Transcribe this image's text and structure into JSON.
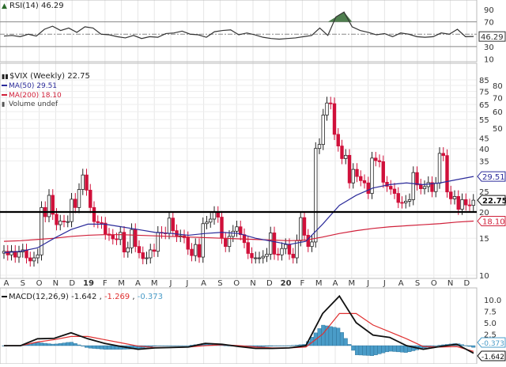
{
  "rsi": {
    "label": "RSI(14) 46.29",
    "last": 46.29,
    "ticks": [
      90,
      70,
      30,
      10
    ],
    "overbought": 70,
    "oversold": 30,
    "midline": 50,
    "fill_color": "#4f7f4f",
    "values": [
      47,
      48,
      46,
      50,
      47,
      58,
      63,
      56,
      60,
      53,
      62,
      60,
      50,
      49,
      46,
      44,
      48,
      43,
      46,
      45,
      51,
      52,
      55,
      50,
      49,
      45,
      54,
      56,
      57,
      49,
      52,
      49,
      45,
      43,
      42,
      43,
      44,
      46,
      48,
      60,
      48,
      78,
      86,
      62,
      56,
      53,
      49,
      51,
      46,
      52,
      50,
      46,
      45,
      46,
      52,
      50,
      58,
      46,
      46.29
    ]
  },
  "price": {
    "label": "$VIX (Weekly) 22.75",
    "ma50_label": "MA(50) 29.51",
    "ma200_label": "MA(200) 18.10",
    "volume_label": "Volume undef",
    "last": "22.75",
    "ma50_last": "29.51",
    "ma200_last": "18.10",
    "ticks": [
      85,
      80,
      75,
      70,
      65,
      60,
      55,
      50,
      45,
      40,
      35,
      25,
      20,
      15,
      10
    ],
    "support_line": 20,
    "up_color": "#ffffff",
    "down_color": "#d0103a",
    "ma50_color": "#2b2b9a",
    "ma200_color": "#d0203a",
    "weekly_close": [
      13,
      12.5,
      13,
      12.2,
      12.9,
      13.2,
      12.1,
      11.7,
      12.1,
      12.5,
      21,
      19,
      24,
      19.5,
      17.4,
      18.1,
      18,
      18,
      23,
      21,
      25.6,
      30,
      25.4,
      21,
      18,
      17.8,
      17.7,
      15.7,
      15.5,
      14.9,
      14.8,
      16,
      12.9,
      13.5,
      16.5,
      13.7,
      12.8,
      12,
      12.1,
      13.2,
      13,
      16,
      15.9,
      15.8,
      18.7,
      16.3,
      15.3,
      15.4,
      15.1,
      13.3,
      12.4,
      14,
      12.2,
      17.6,
      17.9,
      18.5,
      19.9,
      18.9,
      15,
      13.7,
      15.3,
      16.2,
      17,
      15.6,
      14.3,
      12.7,
      12.1,
      12.1,
      12.1,
      12.3,
      12.6,
      15.9,
      12.6,
      12.5,
      13.4,
      14,
      12.6,
      12.1,
      14.6,
      18.8,
      15.5,
      13.7,
      14.4,
      40.1,
      41.9,
      57.8,
      66,
      65.5,
      46.8,
      41.2,
      35.9,
      37.2,
      27.5,
      31.9,
      29.5,
      28.2,
      27.5,
      24.5,
      36.1,
      35.1,
      34.7,
      27.7,
      26.5,
      25.7,
      24.5,
      22.2,
      22.1,
      22.5,
      22.9,
      30.8,
      26.9,
      25.8,
      26.4,
      27.6,
      25,
      27.4,
      38,
      37.1,
      24.9,
      23.1,
      23.7,
      20.6,
      22.9,
      21.6,
      21.5,
      22.75
    ],
    "ma50_monthly": [
      12.8,
      13,
      13.5,
      15,
      16.5,
      17.5,
      17.5,
      17,
      16.5,
      16,
      15.8,
      15.5,
      15.8,
      16,
      15.8,
      15,
      14.5,
      14,
      14.5,
      17.5,
      21.5,
      24,
      26,
      27,
      27.5,
      27,
      27.5,
      28.5,
      29.51
    ],
    "ma200_monthly": [
      14.5,
      14.6,
      14.8,
      15,
      15.3,
      15.5,
      15.6,
      15.6,
      15.5,
      15.4,
      15.3,
      15.2,
      15.1,
      15,
      14.9,
      14.8,
      14.7,
      14.6,
      14.7,
      15.2,
      15.8,
      16.3,
      16.7,
      17,
      17.2,
      17.4,
      17.6,
      17.9,
      18.1
    ]
  },
  "months": [
    "A",
    "S",
    "O",
    "N",
    "D",
    "19",
    "F",
    "M",
    "A",
    "M",
    "J",
    "J",
    "A",
    "S",
    "O",
    "N",
    "D",
    "20",
    "F",
    "M",
    "A",
    "M",
    "J",
    "J",
    "A",
    "S",
    "O",
    "N",
    "D"
  ],
  "macd": {
    "label_name": "MACD(12,26,9)",
    "macd_value": "-1.642",
    "signal_value": "-1.269",
    "hist_value": "-0.373",
    "ticks": [
      "10.0",
      "7.5",
      "5.0",
      "2.5"
    ],
    "macd_color": "#111111",
    "signal_color": "#e03030",
    "hist_color": "#4a9cc8",
    "macd_monthly": [
      0,
      0,
      1.5,
      1.6,
      2.8,
      1.5,
      0.5,
      -0.2,
      -0.8,
      -0.5,
      -0.4,
      -0.3,
      0.5,
      0.3,
      -0.2,
      -0.6,
      -0.6,
      -0.5,
      0,
      7,
      10.8,
      5,
      2.3,
      1.8,
      0,
      -0.8,
      -0.2,
      0.3,
      -1.642
    ],
    "signal_monthly": [
      0,
      0,
      0.8,
      1.3,
      2,
      2,
      1.3,
      0.6,
      -0.1,
      -0.4,
      -0.4,
      -0.3,
      0,
      0.2,
      0,
      -0.3,
      -0.5,
      -0.5,
      -0.3,
      2.5,
      7,
      7,
      4.5,
      3,
      1.5,
      -0.2,
      -0.3,
      -0.2,
      -1.269
    ]
  }
}
